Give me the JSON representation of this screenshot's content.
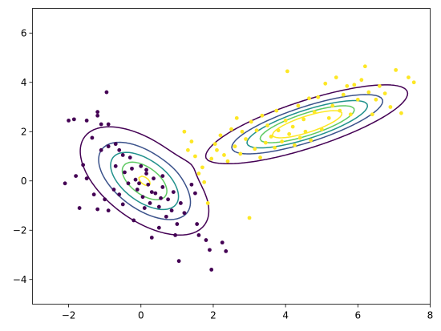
{
  "chart_data": {
    "type": "scatter",
    "title": "",
    "xlabel": "",
    "ylabel": "",
    "xlim": [
      -3,
      8
    ],
    "ylim": [
      -5,
      7
    ],
    "xticks": [
      -2,
      0,
      2,
      4,
      6,
      8
    ],
    "yticks": [
      -4,
      -2,
      0,
      2,
      4,
      6
    ],
    "xtick_labels": [
      "−2",
      "0",
      "2",
      "4",
      "6",
      "8"
    ],
    "ytick_labels": [
      "−4",
      "−2",
      "0",
      "2",
      "4",
      "6"
    ],
    "grid": false,
    "legend": "none",
    "series": [
      {
        "color": "#440154",
        "points": [
          [
            -2.0,
            2.45
          ],
          [
            -1.85,
            2.5
          ],
          [
            -1.5,
            2.45
          ],
          [
            -1.2,
            2.65
          ],
          [
            -0.95,
            3.6
          ],
          [
            -1.2,
            2.8
          ],
          [
            -1.1,
            2.3
          ],
          [
            -0.9,
            2.3
          ],
          [
            -2.1,
            -0.1
          ],
          [
            -1.7,
            -1.1
          ],
          [
            -1.8,
            0.2
          ],
          [
            -1.6,
            0.65
          ],
          [
            -1.35,
            1.75
          ],
          [
            -1.1,
            1.25
          ],
          [
            -0.9,
            1.4
          ],
          [
            -0.7,
            1.5
          ],
          [
            -0.6,
            1.25
          ],
          [
            -0.5,
            1.05
          ],
          [
            -0.3,
            0.95
          ],
          [
            -1.5,
            0.1
          ],
          [
            -1.3,
            -0.55
          ],
          [
            -1.2,
            -1.15
          ],
          [
            -1.0,
            -0.75
          ],
          [
            -0.9,
            -1.2
          ],
          [
            -0.75,
            -0.35
          ],
          [
            -0.6,
            -0.55
          ],
          [
            -0.5,
            -0.95
          ],
          [
            -0.35,
            -0.1
          ],
          [
            -0.25,
            0.5
          ],
          [
            -0.15,
            0.05
          ],
          [
            -0.1,
            -0.35
          ],
          [
            0.0,
            0.6
          ],
          [
            0.05,
            -0.65
          ],
          [
            0.15,
            0.3
          ],
          [
            0.2,
            -0.15
          ],
          [
            0.25,
            -0.9
          ],
          [
            0.35,
            0.1
          ],
          [
            0.4,
            -0.5
          ],
          [
            0.5,
            -1.05
          ],
          [
            0.6,
            -0.25
          ],
          [
            0.7,
            -1.45
          ],
          [
            0.75,
            -0.75
          ],
          [
            0.85,
            -1.2
          ],
          [
            0.9,
            -0.45
          ],
          [
            1.0,
            -1.75
          ],
          [
            1.1,
            -0.9
          ],
          [
            1.2,
            -1.3
          ],
          [
            0.95,
            -2.2
          ],
          [
            1.05,
            -3.25
          ],
          [
            1.8,
            -2.4
          ],
          [
            1.9,
            -2.8
          ],
          [
            1.95,
            -3.6
          ],
          [
            2.25,
            -2.5
          ],
          [
            2.35,
            -2.85
          ],
          [
            0.3,
            -2.3
          ],
          [
            0.5,
            -1.9
          ],
          [
            -0.2,
            -1.6
          ],
          [
            0.1,
            -1.1
          ],
          [
            0.55,
            -0.7
          ],
          [
            0.15,
            0.45
          ],
          [
            -0.05,
            -0.1
          ],
          [
            0.3,
            -0.45
          ],
          [
            0.6,
            0.2
          ],
          [
            -0.45,
            0.35
          ],
          [
            -0.7,
            0.6
          ],
          [
            1.4,
            -0.15
          ],
          [
            1.5,
            -0.5
          ],
          [
            1.55,
            -1.75
          ],
          [
            1.6,
            -2.2
          ]
        ]
      },
      {
        "color": "#fde725",
        "points": [
          [
            1.2,
            2.0
          ],
          [
            1.3,
            1.25
          ],
          [
            1.4,
            1.6
          ],
          [
            1.5,
            1.0
          ],
          [
            1.6,
            0.3
          ],
          [
            1.7,
            0.55
          ],
          [
            1.75,
            -0.05
          ],
          [
            1.85,
            -0.9
          ],
          [
            1.95,
            0.9
          ],
          [
            2.05,
            1.5
          ],
          [
            2.1,
            1.25
          ],
          [
            2.2,
            1.85
          ],
          [
            2.3,
            1.05
          ],
          [
            2.4,
            0.8
          ],
          [
            2.5,
            2.1
          ],
          [
            2.6,
            1.4
          ],
          [
            2.65,
            2.55
          ],
          [
            2.75,
            1.1
          ],
          [
            2.8,
            2.0
          ],
          [
            2.9,
            1.7
          ],
          [
            3.0,
            -1.5
          ],
          [
            3.05,
            2.4
          ],
          [
            3.15,
            1.3
          ],
          [
            3.2,
            2.05
          ],
          [
            3.3,
            0.95
          ],
          [
            3.35,
            2.65
          ],
          [
            3.45,
            1.55
          ],
          [
            3.5,
            2.25
          ],
          [
            3.6,
            1.8
          ],
          [
            3.7,
            1.35
          ],
          [
            3.75,
            2.85
          ],
          [
            3.8,
            2.05
          ],
          [
            3.9,
            1.6
          ],
          [
            4.0,
            2.45
          ],
          [
            4.05,
            4.45
          ],
          [
            4.1,
            1.9
          ],
          [
            4.2,
            2.2
          ],
          [
            4.25,
            1.45
          ],
          [
            4.35,
            3.05
          ],
          [
            4.4,
            1.75
          ],
          [
            4.5,
            2.5
          ],
          [
            4.55,
            2.0
          ],
          [
            4.65,
            3.35
          ],
          [
            4.7,
            1.65
          ],
          [
            4.8,
            2.8
          ],
          [
            4.9,
            3.4
          ],
          [
            5.0,
            2.1
          ],
          [
            5.1,
            3.95
          ],
          [
            5.2,
            2.55
          ],
          [
            5.3,
            3.05
          ],
          [
            5.4,
            4.2
          ],
          [
            5.5,
            2.85
          ],
          [
            5.6,
            3.5
          ],
          [
            5.7,
            3.85
          ],
          [
            5.8,
            2.7
          ],
          [
            5.9,
            3.9
          ],
          [
            6.0,
            3.3
          ],
          [
            6.1,
            4.1
          ],
          [
            6.2,
            4.65
          ],
          [
            6.3,
            3.6
          ],
          [
            6.4,
            2.7
          ],
          [
            6.5,
            3.3
          ],
          [
            6.6,
            3.85
          ],
          [
            6.75,
            3.55
          ],
          [
            6.9,
            3.0
          ],
          [
            7.05,
            4.5
          ],
          [
            7.2,
            2.75
          ],
          [
            7.4,
            4.2
          ],
          [
            7.55,
            4.0
          ]
        ]
      }
    ],
    "contours": [
      {
        "color": "#440154",
        "level": 1
      },
      {
        "color": "#3b528b",
        "level": 2
      },
      {
        "color": "#21918c",
        "level": 3
      },
      {
        "color": "#5ec962",
        "level": 4
      },
      {
        "color": "#fde725",
        "level": 5
      }
    ]
  }
}
